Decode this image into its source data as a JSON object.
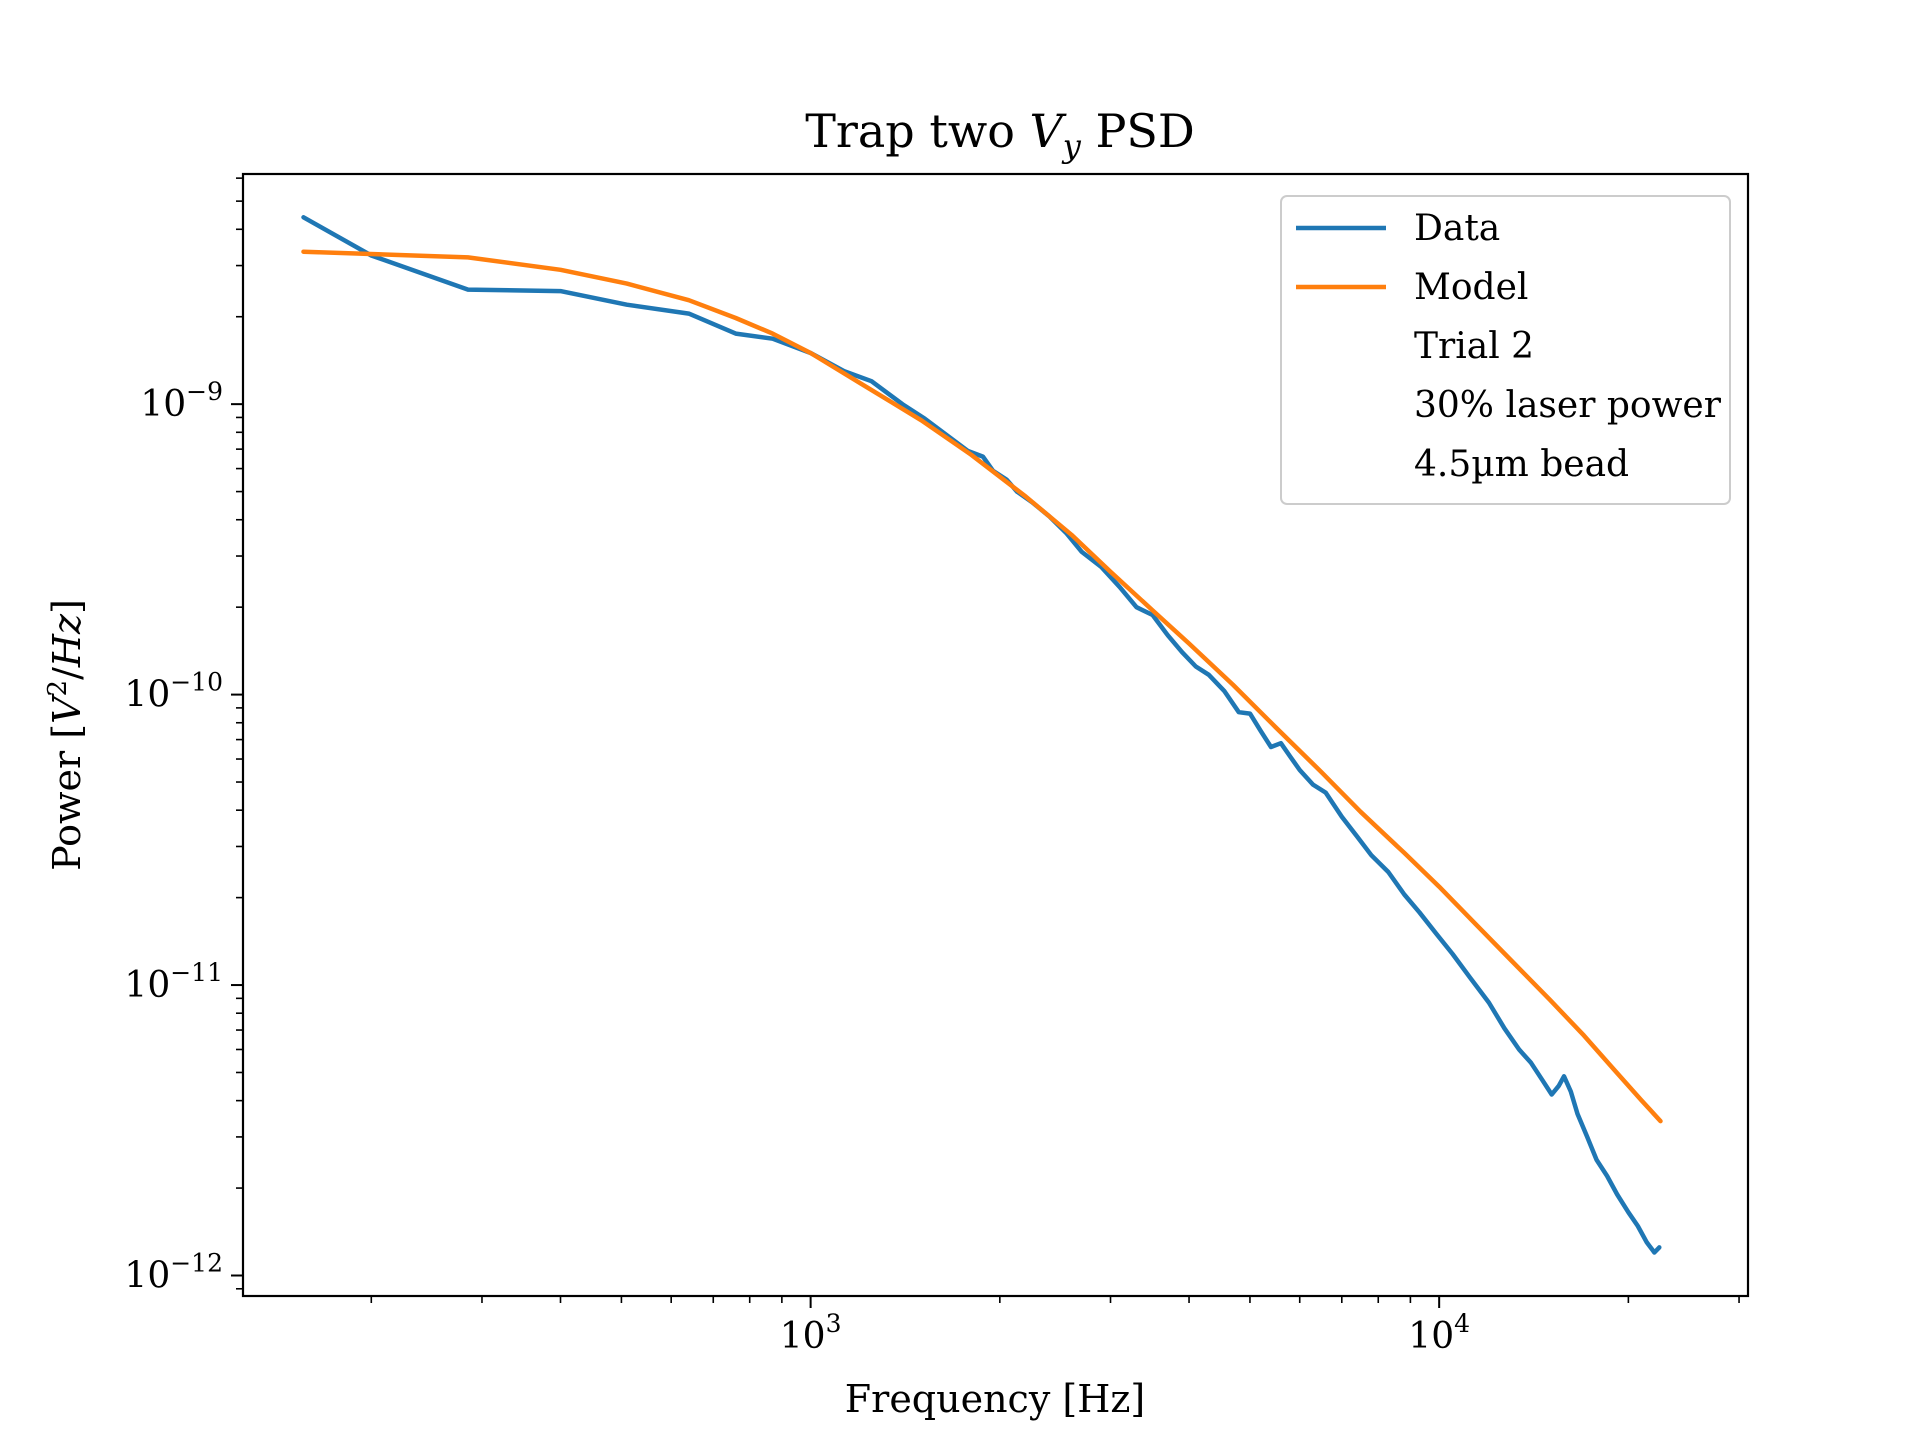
{
  "chart_data": {
    "type": "line",
    "title": "Trap two V_y PSD",
    "title_parts": {
      "prefix": "Trap two ",
      "var": "V",
      "sub": "y",
      "suffix": " PSD"
    },
    "xlabel": "Frequency [Hz]",
    "ylabel": "Power [V^2/Hz]",
    "ylabel_parts": {
      "prefix": "Power [",
      "var": "V",
      "sup": "2",
      "mid": "/",
      "unit": "Hz",
      "suffix": "]"
    },
    "x_scale": "log",
    "y_scale": "log",
    "xlim": [
      125,
      31000
    ],
    "ylim": [
      8.5e-13,
      6.2e-09
    ],
    "grid": false,
    "legend_position": "top-right",
    "x_major_ticks": [
      {
        "value": 1000,
        "base": "10",
        "exp": "3"
      },
      {
        "value": 10000,
        "base": "10",
        "exp": "4"
      }
    ],
    "y_major_ticks": [
      {
        "value": 1e-09,
        "base": "10",
        "exp": "−9"
      },
      {
        "value": 1e-10,
        "base": "10",
        "exp": "−10"
      },
      {
        "value": 1e-11,
        "base": "10",
        "exp": "−11"
      },
      {
        "value": 1e-12,
        "base": "10",
        "exp": "−12"
      }
    ],
    "legend_entries": [
      "Data",
      "Model",
      "Trial 2",
      "30% laser power",
      "4.5µm bead"
    ],
    "series": [
      {
        "name": "Data",
        "color": "#1f77b4",
        "x": [
          156,
          200,
          285,
          400,
          510,
          640,
          760,
          870,
          1000,
          1130,
          1250,
          1400,
          1520,
          1650,
          1780,
          1880,
          1950,
          2050,
          2130,
          2250,
          2400,
          2550,
          2700,
          2900,
          3100,
          3300,
          3500,
          3700,
          3900,
          4100,
          4300,
          4550,
          4800,
          5000,
          5200,
          5400,
          5600,
          5800,
          6000,
          6300,
          6600,
          7000,
          7400,
          7800,
          8300,
          8800,
          9300,
          9900,
          10500,
          11200,
          12000,
          12700,
          13400,
          14000,
          14600,
          15100,
          15500,
          15800,
          16200,
          16600,
          17200,
          17800,
          18500,
          19200,
          20000,
          20700,
          21400,
          22000,
          22400
        ],
        "y": [
          4.4e-09,
          3.25e-09,
          2.48e-09,
          2.45e-09,
          2.2e-09,
          2.05e-09,
          1.75e-09,
          1.68e-09,
          1.5e-09,
          1.3e-09,
          1.2e-09,
          1e-09,
          8.9e-10,
          7.8e-10,
          6.9e-10,
          6.6e-10,
          5.9e-10,
          5.5e-10,
          5e-10,
          4.6e-10,
          4.1e-10,
          3.6e-10,
          3.1e-10,
          2.75e-10,
          2.35e-10,
          2e-10,
          1.88e-10,
          1.6e-10,
          1.4e-10,
          1.25e-10,
          1.17e-10,
          1.03e-10,
          8.7e-11,
          8.6e-11,
          7.5e-11,
          6.6e-11,
          6.8e-11,
          6.1e-11,
          5.5e-11,
          4.9e-11,
          4.6e-11,
          3.8e-11,
          3.25e-11,
          2.8e-11,
          2.45e-11,
          2.05e-11,
          1.78e-11,
          1.5e-11,
          1.28e-11,
          1.06e-11,
          8.7e-12,
          7.1e-12,
          6e-12,
          5.4e-12,
          4.7e-12,
          4.2e-12,
          4.5e-12,
          4.85e-12,
          4.3e-12,
          3.6e-12,
          3e-12,
          2.5e-12,
          2.2e-12,
          1.9e-12,
          1.65e-12,
          1.48e-12,
          1.3e-12,
          1.2e-12,
          1.25e-12
        ]
      },
      {
        "name": "Model",
        "color": "#ff7f0e",
        "x": [
          156,
          285,
          400,
          510,
          640,
          760,
          870,
          1000,
          1200,
          1500,
          1800,
          2200,
          2600,
          3000,
          3500,
          4000,
          4700,
          5500,
          6500,
          7500,
          8800,
          10000,
          11500,
          13000,
          15000,
          17000,
          19000,
          21000,
          22500
        ],
        "y": [
          3.35e-09,
          3.2e-09,
          2.9e-09,
          2.6e-09,
          2.28e-09,
          1.98e-09,
          1.75e-09,
          1.5e-09,
          1.18e-09,
          8.8e-10,
          6.7e-10,
          4.8e-10,
          3.55e-10,
          2.65e-10,
          1.95e-10,
          1.5e-10,
          1.08e-10,
          7.7e-11,
          5.4e-11,
          3.95e-11,
          2.85e-11,
          2.18e-11,
          1.6e-11,
          1.22e-11,
          8.9e-12,
          6.7e-12,
          5.1e-12,
          4e-12,
          3.4e-12
        ]
      }
    ]
  }
}
